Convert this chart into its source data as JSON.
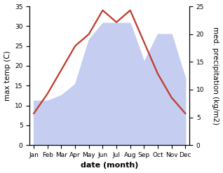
{
  "months": [
    "Jan",
    "Feb",
    "Mar",
    "Apr",
    "May",
    "Jun",
    "Jul",
    "Aug",
    "Sep",
    "Oct",
    "Nov",
    "Dec"
  ],
  "temperature": [
    8,
    13,
    19,
    25,
    28,
    34,
    31,
    34,
    26,
    18,
    12,
    8
  ],
  "precipitation": [
    8,
    8,
    9,
    11,
    19,
    22,
    22,
    22,
    15,
    20,
    20,
    12
  ],
  "temp_color": "#c0392b",
  "precip_fill_color": "#c5cdf0",
  "left_ylabel": "max temp (C)",
  "right_ylabel": "med. precipitation (kg/m2)",
  "xlabel": "date (month)",
  "ylim_left": [
    0,
    35
  ],
  "ylim_right": [
    0,
    25
  ],
  "yticks_left": [
    0,
    5,
    10,
    15,
    20,
    25,
    30,
    35
  ],
  "yticks_right": [
    0,
    5,
    10,
    15,
    20,
    25
  ],
  "label_fontsize": 7.5,
  "tick_fontsize": 6.5,
  "xlabel_fontsize": 8,
  "linewidth": 1.6
}
